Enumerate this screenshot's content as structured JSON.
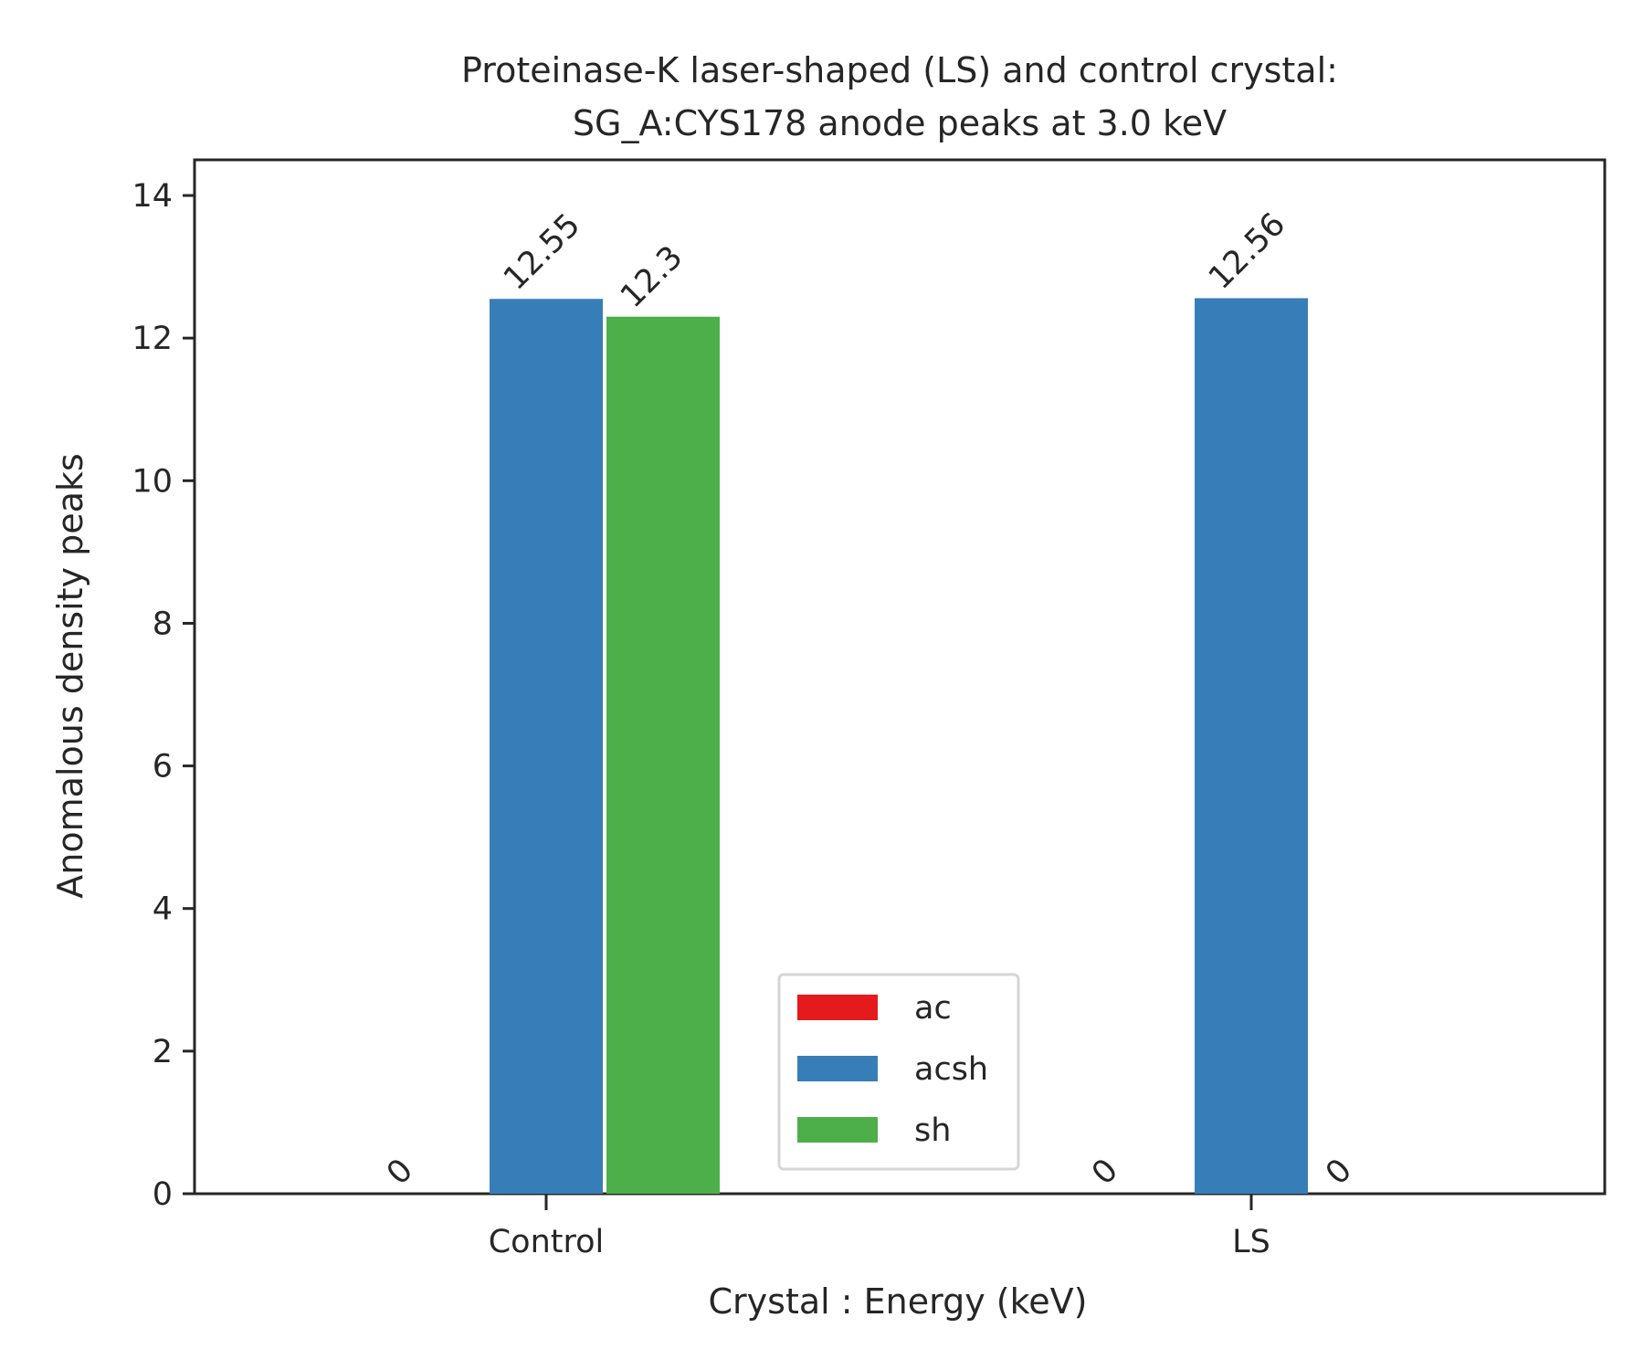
{
  "chart_data": {
    "type": "bar",
    "title_lines": [
      "Proteinase-K laser-shaped (LS) and control crystal:",
      "SG_A:CYS178 anode peaks at 3.0 keV"
    ],
    "xlabel": "Crystal : Energy (keV)",
    "ylabel": "Anomalous density peaks",
    "categories": [
      "Control",
      "LS"
    ],
    "ylim": [
      0,
      14.5
    ],
    "yticks": [
      0,
      2,
      4,
      6,
      8,
      10,
      12,
      14
    ],
    "ytick_labels": [
      "0",
      "2",
      "4",
      "6",
      "8",
      "10",
      "12",
      "14"
    ],
    "series": [
      {
        "name": "ac",
        "color": "#e41a1c",
        "values": [
          0,
          null
        ],
        "labels": [
          "0",
          ""
        ]
      },
      {
        "name": "acsh",
        "color": "#377eb8",
        "values": [
          12.55,
          12.56
        ],
        "labels": [
          "12.55",
          "12.56"
        ]
      },
      {
        "name": "sh",
        "color": "#4daf4a",
        "values": [
          12.3,
          0
        ],
        "labels": [
          "12.3",
          "0"
        ]
      }
    ],
    "extra_labels": [
      {
        "category": "LS",
        "series": "ac",
        "text": "0"
      }
    ],
    "legend": {
      "position": "lower-center",
      "entries": [
        "ac",
        "acsh",
        "sh"
      ]
    },
    "grid": false
  }
}
